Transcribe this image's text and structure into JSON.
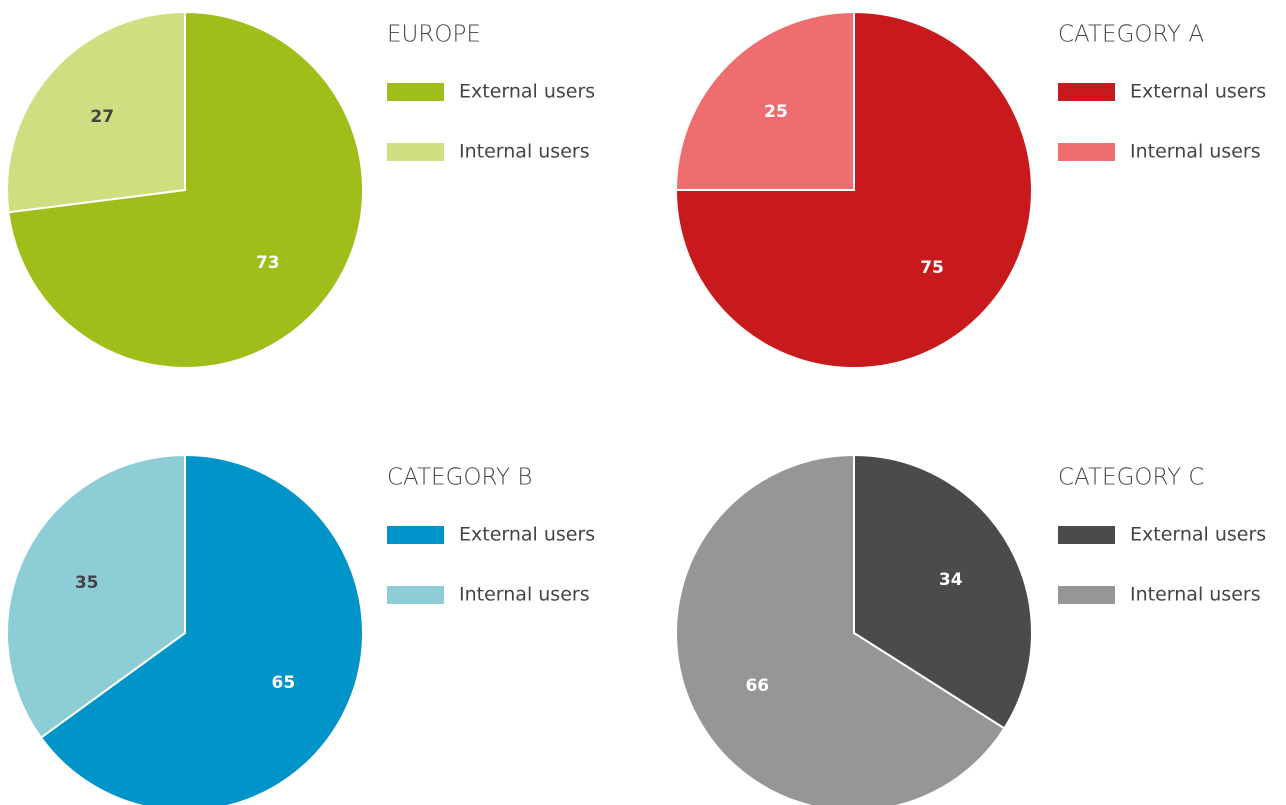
{
  "chart_data": [
    {
      "type": "pie",
      "title": "EUROPE",
      "categories": [
        "External users",
        "Internal users"
      ],
      "values": [
        73,
        27
      ],
      "colors": [
        "#9fbe1a",
        "#d0de82"
      ]
    },
    {
      "type": "pie",
      "title": "CATEGORY A",
      "categories": [
        "External users",
        "Internal users"
      ],
      "values": [
        75,
        25
      ],
      "colors": [
        "#c8191c",
        "#ee6e6f"
      ]
    },
    {
      "type": "pie",
      "title": "CATEGORY B",
      "categories": [
        "External users",
        "Internal users"
      ],
      "values": [
        65,
        35
      ],
      "colors": [
        "#0094c8",
        "#8ccdd6"
      ]
    },
    {
      "type": "pie",
      "title": "CATEGORY C",
      "categories": [
        "External users",
        "Internal users"
      ],
      "values": [
        34,
        66
      ],
      "colors": [
        "#4b4b4b",
        "#969696"
      ]
    }
  ]
}
